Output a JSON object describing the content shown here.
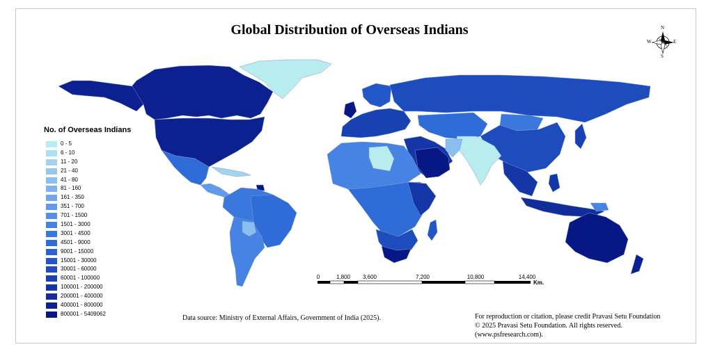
{
  "title": "Global Distribution of Overseas Indians",
  "legend": {
    "title": "No. of Overseas Indians",
    "classes": [
      {
        "label": "0 - 5",
        "color": "#b9ecee"
      },
      {
        "label": "6 - 10",
        "color": "#a9e1ee"
      },
      {
        "label": "11 - 20",
        "color": "#a2d4ef"
      },
      {
        "label": "21 - 40",
        "color": "#96c8ee"
      },
      {
        "label": "41 - 80",
        "color": "#8abdf0"
      },
      {
        "label": "81 - 160",
        "color": "#7fb2ee"
      },
      {
        "label": "161 - 350",
        "color": "#71a6ec"
      },
      {
        "label": "351 - 700",
        "color": "#619aeb"
      },
      {
        "label": "701 - 1500",
        "color": "#548fe8"
      },
      {
        "label": "1501 - 3000",
        "color": "#4683e3"
      },
      {
        "label": "3001 - 4500",
        "color": "#3a78de"
      },
      {
        "label": "4501 - 9000",
        "color": "#2f6cd8"
      },
      {
        "label": "9001 - 15000",
        "color": "#2a62d1"
      },
      {
        "label": "15001 - 30000",
        "color": "#2357c7"
      },
      {
        "label": "30001 - 60000",
        "color": "#1e4cbd"
      },
      {
        "label": "60001 - 100000",
        "color": "#1a41b2"
      },
      {
        "label": "100001 - 200000",
        "color": "#1536a6"
      },
      {
        "label": "200001 - 400000",
        "color": "#112c9b"
      },
      {
        "label": "400001 - 800000",
        "color": "#0c218f"
      },
      {
        "label": "800001 - 5409062",
        "color": "#071783"
      }
    ]
  },
  "scale_bar": {
    "ticks": [
      "0",
      "1,800",
      "3,600",
      "7,200",
      "10,800",
      "14,400"
    ],
    "unit": "Km."
  },
  "compass": {
    "n": "N",
    "s": "S",
    "e": "E",
    "w": "W"
  },
  "data_source": "Data source: Ministry of External Affairs, Government of India (2025).",
  "credit_lines": [
    "For reproduction or citation, please credit Pravasi Setu Foundation",
    "© 2025 Pravasi Setu Foundation. All rights reserved.",
    "(www.psfresearch.com)."
  ],
  "colors": {
    "ocean": "#ffffff",
    "frame": "#c8c8c8",
    "border": "#6f8fd0"
  }
}
